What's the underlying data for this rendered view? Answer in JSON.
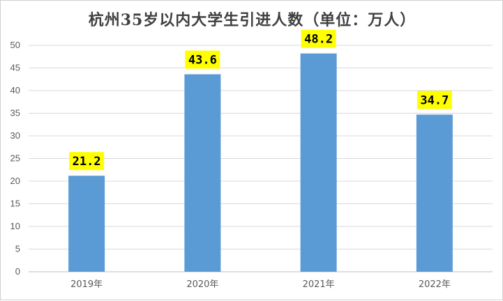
{
  "chart_data": {
    "type": "bar",
    "title": "杭州35岁以内大学生引进人数（单位：万人）",
    "categories": [
      "2019年",
      "2020年",
      "2021年",
      "2022年"
    ],
    "values": [
      21.2,
      43.6,
      48.2,
      34.7
    ],
    "data_labels": [
      "21.2",
      "43.6",
      "48.2",
      "34.7"
    ],
    "ylim": [
      0,
      50
    ],
    "yticks": [
      "0",
      "5",
      "10",
      "15",
      "20",
      "25",
      "30",
      "35",
      "40",
      "45",
      "50"
    ],
    "xlabel": "",
    "ylabel": "",
    "grid": true,
    "legend": "none",
    "bar_color": "#5b9bd5",
    "label_highlight_color": "#ffff00",
    "gridline_color": "#d9d9d9"
  }
}
